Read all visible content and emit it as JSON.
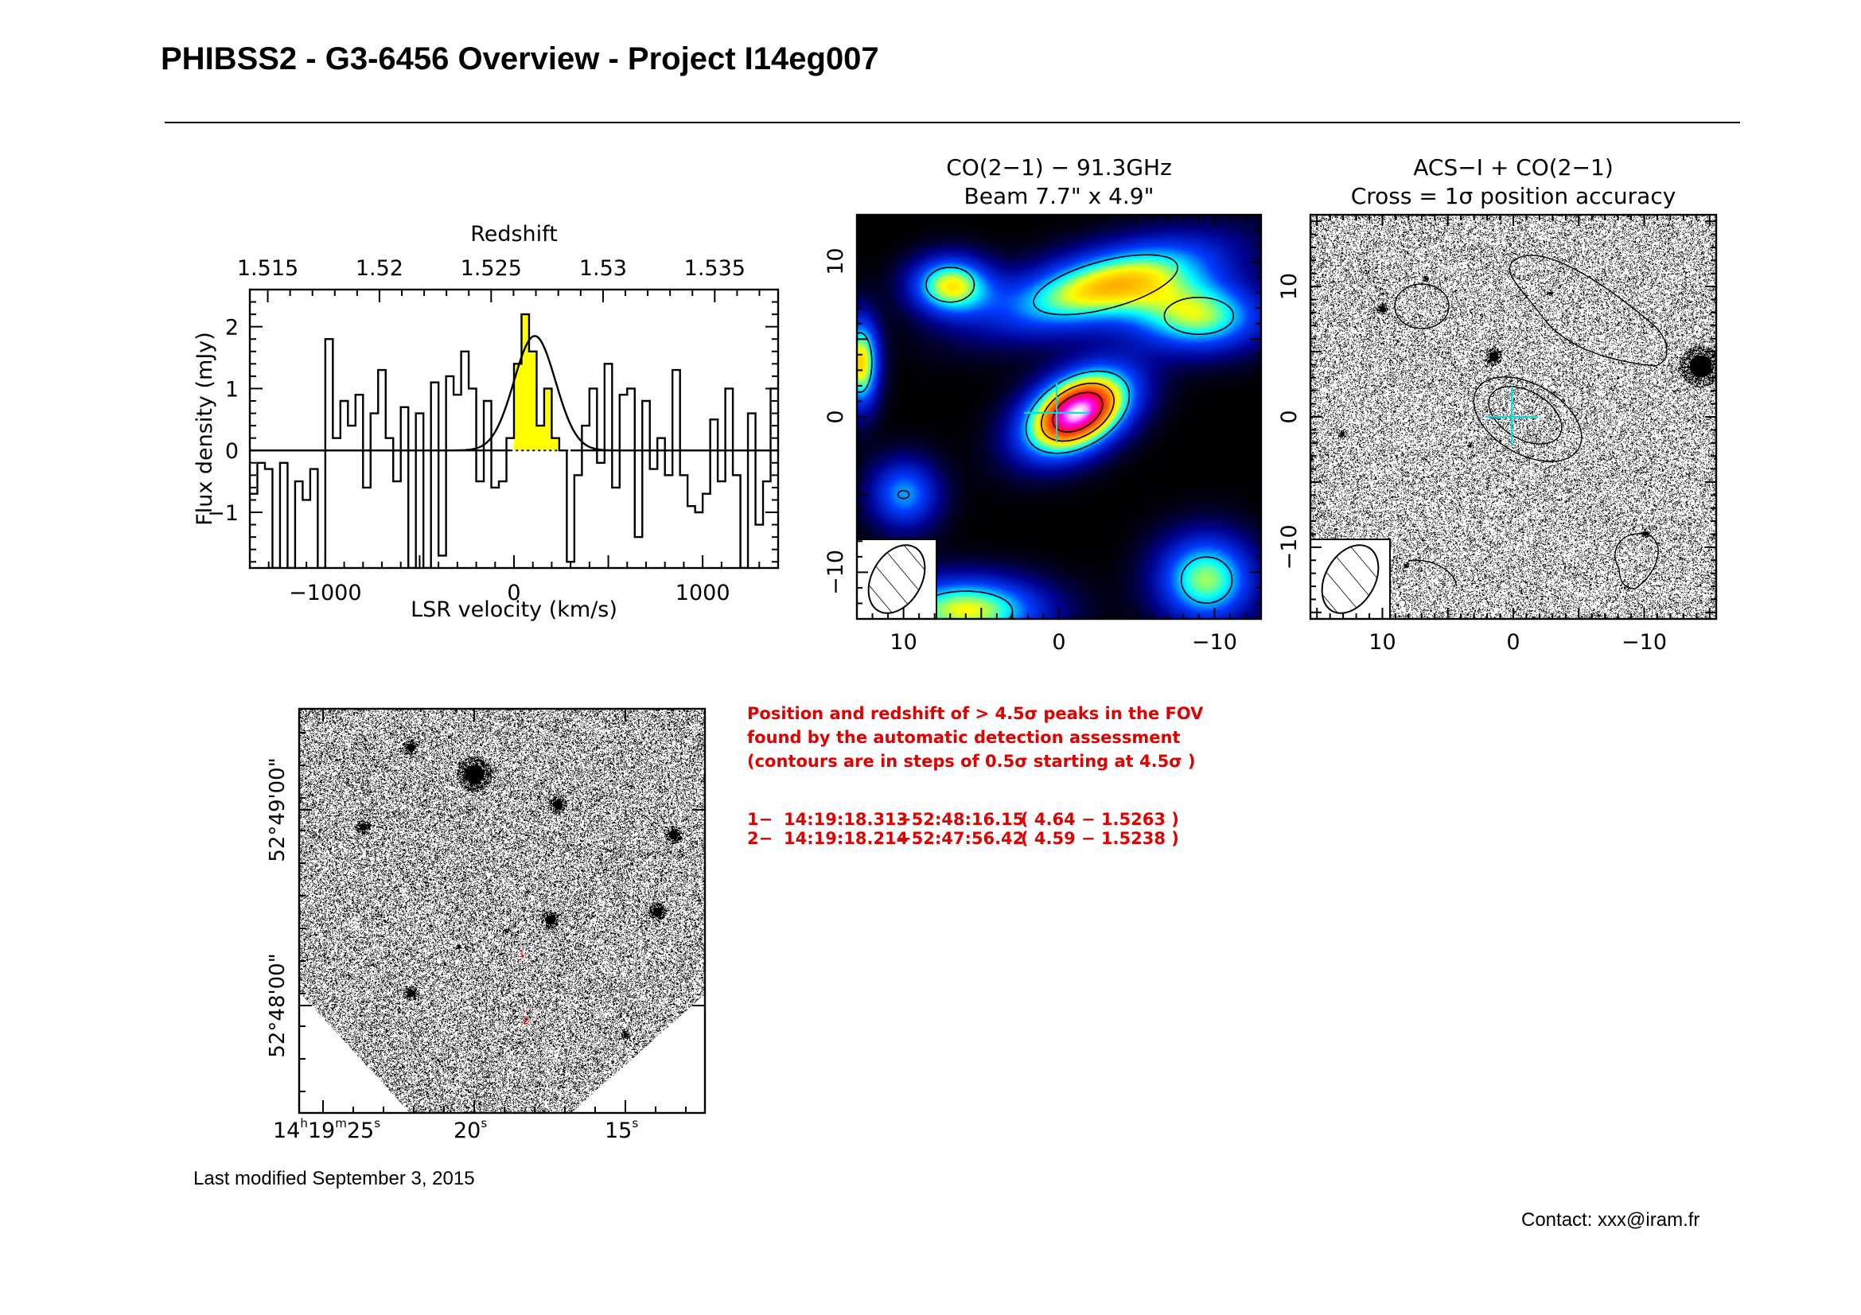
{
  "page": {
    "title": "PHIBSS2 - G3-6456 Overview - Project I14eg007",
    "last_modified": "Last modified September 3, 2015",
    "contact": "Contact: xxx@iram.fr"
  },
  "colors": {
    "spectrum_fill": "#ffff00",
    "line": "#000000",
    "cross": "#00e0e0",
    "annotation": "#e00000"
  },
  "chart_data": [
    {
      "type": "line",
      "name": "spectrum",
      "title": "Redshift",
      "xlabel": "LSR velocity (km/s)",
      "ylabel": "Flux density (mJy)",
      "xlim": [
        -1400,
        1400
      ],
      "ylim": [
        -1.9,
        2.6
      ],
      "xticks": [
        -1000,
        0,
        1000
      ],
      "xtick_labels": [
        "−1000",
        "0",
        "1000"
      ],
      "yticks": [
        -1,
        0,
        1,
        2
      ],
      "ytick_labels": [
        "−1",
        "0",
        "1",
        "2"
      ],
      "top_axis": {
        "label": "Redshift",
        "ticks": [
          1.515,
          1.52,
          1.525,
          1.53,
          1.535
        ],
        "tick_labels": [
          "1.515",
          "1.52",
          "1.525",
          "1.53",
          "1.535"
        ],
        "tick_velocity": [
          -1305,
          -713,
          -121,
          472,
          1064
        ]
      },
      "step_width": 40,
      "step_centers": [
        -1380,
        -1340,
        -1300,
        -1260,
        -1220,
        -1180,
        -1140,
        -1100,
        -1060,
        -1020,
        -980,
        -940,
        -900,
        -860,
        -820,
        -780,
        -740,
        -700,
        -660,
        -620,
        -580,
        -540,
        -500,
        -460,
        -420,
        -380,
        -340,
        -300,
        -260,
        -220,
        -180,
        -140,
        -100,
        -60,
        -20,
        20,
        60,
        100,
        140,
        180,
        220,
        260,
        300,
        340,
        380,
        420,
        460,
        500,
        540,
        580,
        620,
        660,
        700,
        740,
        780,
        820,
        860,
        900,
        940,
        980,
        1020,
        1060,
        1100,
        1140,
        1180,
        1220,
        1260,
        1300,
        1340,
        1380
      ],
      "step_values": [
        -0.7,
        -0.2,
        -0.3,
        -1.9,
        -0.2,
        -1.9,
        -0.5,
        -0.8,
        -0.3,
        -1.9,
        1.8,
        0.2,
        0.8,
        0.4,
        0.9,
        -0.6,
        0.6,
        1.3,
        0.2,
        -0.5,
        0.7,
        -1.9,
        0.6,
        -1.9,
        1.1,
        -1.7,
        1.2,
        0.9,
        1.6,
        1.0,
        -0.5,
        0.8,
        -0.6,
        -0.5,
        0.2,
        1.4,
        2.2,
        1.6,
        0.4,
        1.0,
        0.2,
        0.0,
        -1.8,
        -0.4,
        0.4,
        1.0,
        -0.2,
        1.4,
        -0.6,
        0.9,
        1.0,
        -1.4,
        0.8,
        -0.3,
        0.2,
        -0.4,
        1.3,
        -0.4,
        -0.9,
        -1.0,
        -0.7,
        0.5,
        -0.5,
        1.0,
        -0.4,
        -1.9,
        0.6,
        -1.2,
        -0.5,
        1.0
      ],
      "fit": {
        "amplitude": 1.85,
        "center": 110,
        "sigma": 110
      },
      "yellow_range": [
        -20,
        300
      ],
      "dotted_zero_range": [
        -20,
        300
      ]
    },
    {
      "type": "heatmap",
      "name": "co-map",
      "title": "CO(2−1) − 91.3GHz",
      "subtitle": "Beam 7.7\" x 4.9\"",
      "xlim": [
        13,
        -13
      ],
      "ylim": [
        -13,
        13
      ],
      "xticks": [
        10,
        0,
        -10
      ],
      "yticks": [
        10,
        0,
        -10
      ],
      "xtick_labels": [
        "10",
        "0",
        "−10"
      ],
      "ytick_labels": [
        "10",
        "0",
        "−10"
      ],
      "beam": {
        "major": 7.7,
        "minor": 4.9
      },
      "blobs": [
        {
          "x": -1.2,
          "y": 0.3,
          "sx": 2.6,
          "sy": 1.6,
          "angle": -30,
          "amp": 1.0
        },
        {
          "x": -3.0,
          "y": 8.5,
          "sx": 5.0,
          "sy": 1.6,
          "angle": -15,
          "amp": 0.6
        },
        {
          "x": -9.0,
          "y": 6.5,
          "sx": 3.0,
          "sy": 1.6,
          "angle": 0,
          "amp": 0.5
        },
        {
          "x": 7.0,
          "y": 8.5,
          "sx": 1.8,
          "sy": 1.3,
          "angle": 0,
          "amp": 0.55
        },
        {
          "x": -9.5,
          "y": -10.5,
          "sx": 2.2,
          "sy": 2.0,
          "angle": 0,
          "amp": 0.5
        },
        {
          "x": 6.0,
          "y": -12.5,
          "sx": 3.5,
          "sy": 1.5,
          "angle": 0,
          "amp": 0.55
        },
        {
          "x": 10.0,
          "y": -5.0,
          "sx": 1.6,
          "sy": 1.6,
          "angle": 0,
          "amp": 0.35
        },
        {
          "x": 12.8,
          "y": 3.5,
          "sx": 0.8,
          "sy": 2.0,
          "angle": 0,
          "amp": 0.6
        }
      ]
    },
    {
      "type": "scatter",
      "name": "acs-overlay",
      "title": "ACS−I + CO(2−1)",
      "subtitle": "Cross = 1σ position accuracy",
      "xlim": [
        15.5,
        -15.5
      ],
      "ylim": [
        -15.5,
        15.5
      ],
      "xticks": [
        10,
        0,
        -10
      ],
      "yticks": [
        10,
        0,
        -10
      ],
      "xtick_labels": [
        "10",
        "0",
        "−10"
      ],
      "ytick_labels": [
        "10",
        "0",
        "−10"
      ]
    },
    {
      "type": "scatter",
      "name": "finding-chart",
      "xtick_labels": [
        {
          "h": "14",
          "m": "19",
          "s": "25"
        },
        {
          "s": "20"
        },
        {
          "s": "15"
        }
      ],
      "ytick_labels": [
        "52°48'00\"",
        "52°49'00\""
      ],
      "peak_markers": [
        "1",
        "2"
      ]
    }
  ],
  "detections": {
    "lines": [
      "Position and redshift of > 4.5σ peaks in the FOV",
      "found by the automatic detection assessment",
      "(contours are in steps of 0.5σ starting at 4.5σ )"
    ],
    "peaks": [
      {
        "id": "1−",
        "ra": "14:19:18.313",
        "dec": "+52:48:16.15",
        "info": "( 4.64 − 1.5263 )"
      },
      {
        "id": "2−",
        "ra": "14:19:18.214",
        "dec": "+52:47:56.42",
        "info": "( 4.59 − 1.5238 )"
      }
    ]
  }
}
